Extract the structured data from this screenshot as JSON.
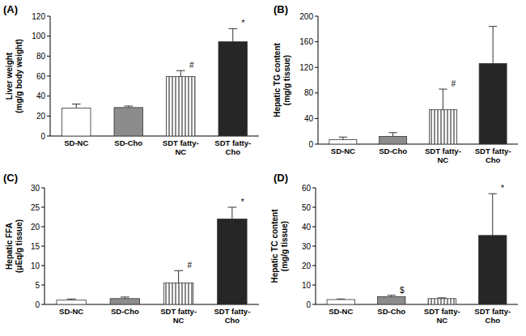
{
  "chart_data": [
    {
      "type": "bar",
      "title": "(A)",
      "ylabel": [
        "Liver weight",
        "(mg/g body weight)"
      ],
      "categories": [
        "SD-NC",
        "SD-Cho",
        "SDT fatty-NC",
        "SDT fatty-Cho"
      ],
      "values": [
        28,
        28.5,
        59.5,
        94.5
      ],
      "errors": [
        4,
        1.5,
        6,
        13
      ],
      "annotations": [
        null,
        null,
        "#",
        "*"
      ],
      "colors": [
        "#ffffff",
        "#8c8c8c",
        "#8a8a8a",
        "#262626"
      ],
      "ylim": [
        0,
        120
      ],
      "yticks": [
        0,
        20,
        40,
        60,
        80,
        100,
        120
      ]
    },
    {
      "type": "bar",
      "title": "(B)",
      "ylabel": [
        "Hepatic TG content",
        "(mg/g tissue)"
      ],
      "categories": [
        "SD-NC",
        "SD-Cho",
        "SDT fatty-NC",
        "SDT fatty-Cho"
      ],
      "values": [
        7,
        12,
        54,
        126
      ],
      "errors": [
        4,
        6,
        32,
        58
      ],
      "annotations": [
        null,
        null,
        "#",
        null
      ],
      "colors": [
        "#ffffff",
        "#8c8c8c",
        "#8a8a8a",
        "#262626"
      ],
      "ylim": [
        0,
        200
      ],
      "yticks": [
        0,
        40,
        80,
        120,
        160,
        200
      ]
    },
    {
      "type": "bar",
      "title": "(C)",
      "ylabel": [
        "Hepatic FFA",
        "(μEq/g tissue)"
      ],
      "categories": [
        "SD-NC",
        "SD-Cho",
        "SDT fatty-NC",
        "SDT fatty-Cho"
      ],
      "values": [
        1.1,
        1.5,
        5.5,
        22
      ],
      "errors": [
        0.3,
        0.4,
        3.2,
        3
      ],
      "annotations": [
        null,
        null,
        "#",
        "*"
      ],
      "colors": [
        "#ffffff",
        "#8c8c8c",
        "#8a8a8a",
        "#262626"
      ],
      "ylim": [
        0,
        30
      ],
      "yticks": [
        0,
        5,
        10,
        15,
        20,
        25,
        30
      ]
    },
    {
      "type": "bar",
      "title": "(D)",
      "ylabel": [
        "Hepatic TC content",
        "(mg/g tissue)"
      ],
      "categories": [
        "SD-NC",
        "SD-Cho",
        "SDT fatty-NC",
        "SDT fatty-Cho"
      ],
      "values": [
        2.5,
        4,
        3,
        35.5
      ],
      "errors": [
        0.3,
        0.7,
        0.4,
        21.5
      ],
      "annotations": [
        null,
        "$",
        null,
        "*"
      ],
      "colors": [
        "#ffffff",
        "#8c8c8c",
        "#8a8a8a",
        "#262626"
      ],
      "ylim": [
        0,
        60
      ],
      "yticks": [
        0,
        10,
        20,
        30,
        40,
        50,
        60
      ]
    }
  ]
}
